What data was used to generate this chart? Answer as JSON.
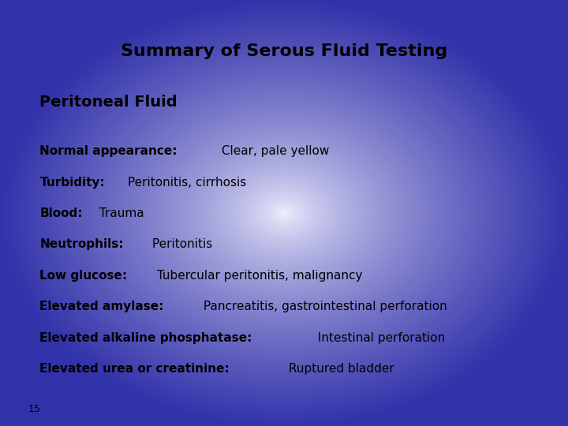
{
  "title": "Summary of Serous Fluid Testing",
  "subtitle": "Peritoneal Fluid",
  "lines": [
    {
      "bold": "Normal appearance:",
      "normal": " Clear, pale yellow"
    },
    {
      "bold": "Turbidity:",
      "normal": " Peritonitis, cirrhosis"
    },
    {
      "bold": "Blood:",
      "normal": " Trauma"
    },
    {
      "bold": "Neutrophils:",
      "normal": " Peritonitis"
    },
    {
      "bold": "Low glucose:",
      "normal": " Tubercular peritonitis, malignancy"
    },
    {
      "bold": "Elevated amylase:",
      "normal": " Pancreatitis, gastrointestinal perforation"
    },
    {
      "bold": "Elevated alkaline phosphatase:",
      "normal": " Intestinal perforation"
    },
    {
      "bold": "Elevated urea or creatinine:",
      "normal": " Ruptured bladder"
    }
  ],
  "footer": "15",
  "bg_outer_color": "#3333aa",
  "title_fontsize": 16,
  "subtitle_fontsize": 14,
  "body_fontsize": 11,
  "footer_fontsize": 9,
  "text_color": "#000000",
  "inner_color_r": 0.95,
  "inner_color_g": 0.95,
  "inner_color_b": 1.0,
  "outer_color_r": 0.2,
  "outer_color_g": 0.2,
  "outer_color_b": 0.67
}
